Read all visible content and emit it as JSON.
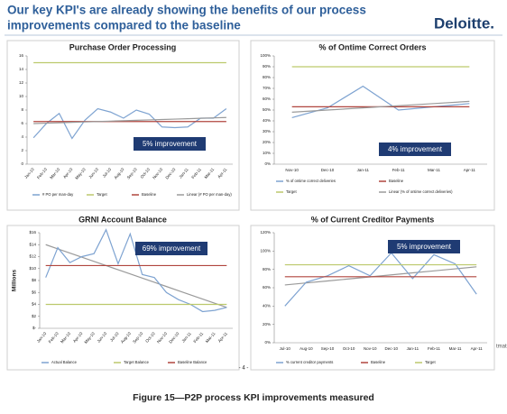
{
  "header": {
    "title_line1": "Our key KPI's are already showing the benefits of our process",
    "title_line2": "improvements compared to the baseline",
    "logo": "Deloitte."
  },
  "page_number": "- 4 -",
  "side_text": "tmatsu",
  "caption": "Figure 15—P2P process KPI improvements measured",
  "chart_data": [
    {
      "type": "line",
      "title": "Purchase Order Processing",
      "categories": [
        "Jan-10",
        "Feb-10",
        "Mar-10",
        "Apr-10",
        "May-10",
        "Jun-10",
        "Jul-10",
        "Aug-10",
        "Sep-10",
        "Oct-10",
        "Nov-10",
        "Dec-10",
        "Jan-11",
        "Feb-11",
        "Mar-11",
        "Apr-11"
      ],
      "series": [
        {
          "name": "# PO per man-day",
          "color": "#7ea3d1",
          "values": [
            3.9,
            6.0,
            7.5,
            3.8,
            6.5,
            8.2,
            7.7,
            6.8,
            8.0,
            7.4,
            5.5,
            5.4,
            5.5,
            6.8,
            6.8,
            8.2
          ]
        },
        {
          "name": "Target",
          "color": "#bcc96c",
          "values": [
            15,
            15,
            15,
            15,
            15,
            15,
            15,
            15,
            15,
            15,
            15,
            15,
            15,
            15,
            15,
            15
          ]
        },
        {
          "name": "Baseline",
          "color": "#b0453e",
          "values": [
            6.3,
            6.3,
            6.3,
            6.3,
            6.3,
            6.3,
            6.3,
            6.3,
            6.3,
            6.3,
            6.3,
            6.3,
            6.3,
            6.3,
            6.3,
            6.3
          ]
        },
        {
          "name": "Linear (# PO per man-day)",
          "color": "#9a9a9a",
          "values": [
            6.0,
            6.06,
            6.12,
            6.18,
            6.24,
            6.3,
            6.36,
            6.42,
            6.48,
            6.54,
            6.6,
            6.66,
            6.72,
            6.78,
            6.84,
            6.9
          ]
        }
      ],
      "ylim": [
        0,
        16
      ],
      "yticks": [
        0,
        2,
        4,
        6,
        8,
        10,
        12,
        14,
        16
      ],
      "annotation": "5% improvement"
    },
    {
      "type": "line",
      "title": "% of Ontime Correct Orders",
      "categories": [
        "Nov-10",
        "Dec-10",
        "Jan-11",
        "Feb-11",
        "Mar-11",
        "Apr-11"
      ],
      "series": [
        {
          "name": "% of ontime correct deliveries",
          "color": "#7ea3d1",
          "values": [
            43,
            52,
            72,
            50,
            53,
            56
          ]
        },
        {
          "name": "Baseline",
          "color": "#b0453e",
          "values": [
            53,
            53,
            53,
            53,
            53,
            53
          ]
        },
        {
          "name": "Target",
          "color": "#bcc96c",
          "values": [
            90,
            90,
            90,
            90,
            90,
            90
          ]
        },
        {
          "name": "Linear (% of ontime correct deliveries)",
          "color": "#9a9a9a",
          "values": [
            48,
            50,
            52,
            54,
            56,
            58
          ]
        }
      ],
      "ylim": [
        0,
        100
      ],
      "yticks": [
        {
          "value": 0,
          "label": "0%"
        },
        {
          "value": 10,
          "label": "10%"
        },
        {
          "value": 20,
          "label": "20%"
        },
        {
          "value": 30,
          "label": "30%"
        },
        {
          "value": 40,
          "label": "40%"
        },
        {
          "value": 50,
          "label": "50%"
        },
        {
          "value": 60,
          "label": "60%"
        },
        {
          "value": 70,
          "label": "70%"
        },
        {
          "value": 80,
          "label": "80%"
        },
        {
          "value": 90,
          "label": "90%"
        },
        {
          "value": 100,
          "label": "100%"
        }
      ],
      "annotation": "4% improvement"
    },
    {
      "type": "line",
      "title": "GRNI Account Balance",
      "y_label": "Millions",
      "categories": [
        "Jan-10",
        "Feb-10",
        "Mar-10",
        "Apr-10",
        "May-10",
        "Jun-10",
        "Jul-10",
        "Aug-10",
        "Sep-10",
        "Oct-10",
        "Nov-10",
        "Dec-10",
        "Jan-11",
        "Feb-11",
        "Mar-11",
        "Apr-11"
      ],
      "series": [
        {
          "name": "Actual Balance",
          "color": "#7ea3d1",
          "values": [
            8.5,
            13.5,
            11,
            12,
            12.5,
            16.5,
            10.8,
            15.8,
            9,
            8.5,
            6,
            4.8,
            4,
            2.8,
            3,
            3.5
          ]
        },
        {
          "name": "Target Balance",
          "color": "#bcc96c",
          "values": [
            4,
            4,
            4,
            4,
            4,
            4,
            4,
            4,
            4,
            4,
            4,
            4,
            4,
            4,
            4,
            4
          ]
        },
        {
          "name": "Baseline Balance",
          "color": "#b0453e",
          "values": [
            10.5,
            10.5,
            10.5,
            10.5,
            10.5,
            10.5,
            10.5,
            10.5,
            10.5,
            10.5,
            10.5,
            10.5,
            10.5,
            10.5,
            10.5,
            10.5
          ]
        }
      ],
      "trend_values": [
        14,
        13.3,
        12.6,
        11.9,
        11.2,
        10.5,
        9.8,
        9.1,
        8.4,
        7.7,
        7,
        6.3,
        5.6,
        4.9,
        4.2,
        3.5
      ],
      "trend_color": "#9a9a9a",
      "ylim": [
        0,
        16
      ],
      "yticks": [
        {
          "value": 0,
          "label": "$-"
        },
        {
          "value": 2,
          "label": "$2"
        },
        {
          "value": 4,
          "label": "$4"
        },
        {
          "value": 6,
          "label": "$6"
        },
        {
          "value": 8,
          "label": "$8"
        },
        {
          "value": 10,
          "label": "$10"
        },
        {
          "value": 12,
          "label": "$12"
        },
        {
          "value": 14,
          "label": "$14"
        },
        {
          "value": 16,
          "label": "$16"
        }
      ],
      "annotation": "69% improvement"
    },
    {
      "type": "line",
      "title": "% of Current Creditor Payments",
      "categories": [
        "Jul-10",
        "Aug-10",
        "Sep-10",
        "Oct-10",
        "Nov-10",
        "Dec-10",
        "Jan-11",
        "Feb-11",
        "Mar-11",
        "Apr-11"
      ],
      "series": [
        {
          "name": "% current creditor payments",
          "color": "#7ea3d1",
          "values": [
            40,
            66,
            73,
            84,
            73,
            98,
            70,
            96,
            86,
            53
          ]
        },
        {
          "name": "Baseline",
          "color": "#b0453e",
          "values": [
            72,
            72,
            72,
            72,
            72,
            72,
            72,
            72,
            72,
            72
          ]
        },
        {
          "name": "Target",
          "color": "#bcc96c",
          "values": [
            85,
            85,
            85,
            85,
            85,
            85,
            85,
            85,
            85,
            85
          ]
        }
      ],
      "trend_values": [
        63,
        65.2,
        67.4,
        69.6,
        71.8,
        74,
        76.2,
        78.4,
        80.6,
        82.8
      ],
      "trend_color": "#9a9a9a",
      "ylim": [
        0,
        120
      ],
      "yticks": [
        {
          "value": 0,
          "label": "0%"
        },
        {
          "value": 20,
          "label": "20%"
        },
        {
          "value": 40,
          "label": "40%"
        },
        {
          "value": 60,
          "label": "60%"
        },
        {
          "value": 80,
          "label": "80%"
        },
        {
          "value": 100,
          "label": "100%"
        },
        {
          "value": 120,
          "label": "120%"
        }
      ],
      "annotation": "5% improvement"
    }
  ]
}
